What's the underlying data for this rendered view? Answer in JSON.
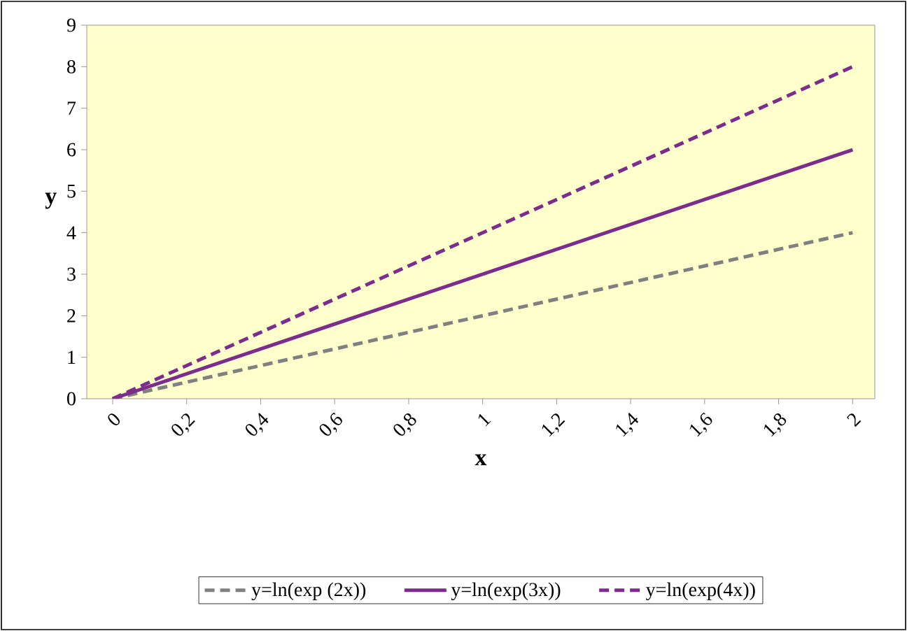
{
  "chart_data": {
    "type": "line",
    "xlabel": "x",
    "ylabel": "y",
    "x": [
      0,
      2
    ],
    "series": [
      {
        "name": "y=ln(exp (2x))",
        "color": "#808080",
        "values": [
          0,
          4
        ],
        "line_style": "dashed"
      },
      {
        "name": "y=ln(exp(3x))",
        "color": "#7b2c8c",
        "values": [
          0,
          6
        ],
        "line_style": "solid"
      },
      {
        "name": "y=ln(exp(4x))",
        "color": "#7b2c8c",
        "values": [
          0,
          8
        ],
        "line_style": "dashed"
      }
    ],
    "xlim": [
      -0.07,
      2.06
    ],
    "xticks": [
      0,
      {
        "value": 0.2,
        "label": "0,2"
      },
      {
        "value": 0.4,
        "label": "0,4"
      },
      {
        "value": 0.6,
        "label": "0,6"
      },
      {
        "value": 0.8,
        "label": "0,8"
      },
      1,
      {
        "value": 1.2,
        "label": "1,2"
      },
      {
        "value": 1.4,
        "label": "1,4"
      },
      {
        "value": 1.6,
        "label": "1,6"
      },
      {
        "value": 1.8,
        "label": "1,8"
      },
      2
    ],
    "ylim": [
      0,
      9
    ],
    "yticks": [
      0,
      1,
      2,
      3,
      4,
      5,
      6,
      7,
      8,
      9
    ],
    "grid": false,
    "legend": "bottom"
  }
}
